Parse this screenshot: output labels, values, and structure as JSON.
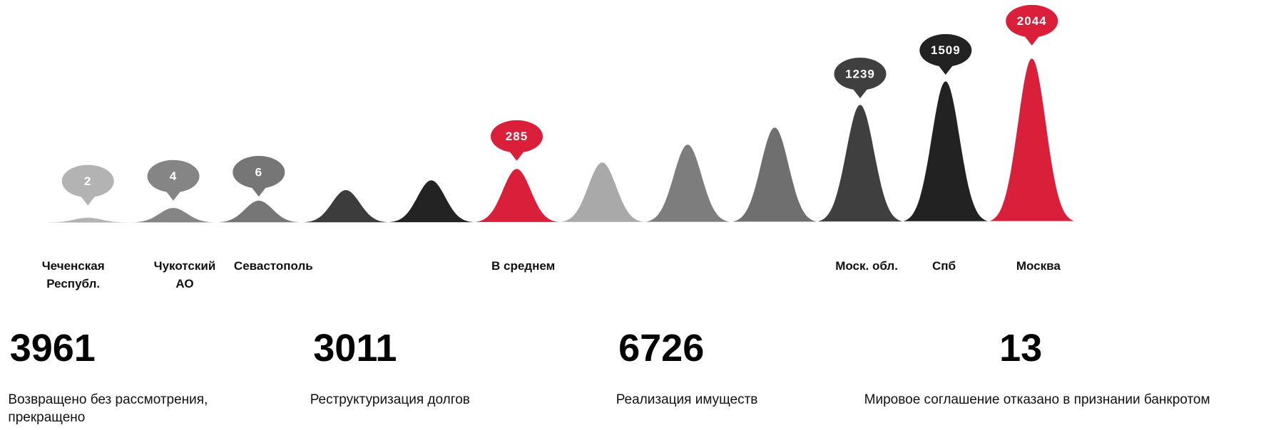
{
  "peaks": [
    {
      "name": "Чеченская Республ.",
      "value": 2,
      "color": "#b3b3b3"
    },
    {
      "name": "Чукотский АО",
      "value": 4,
      "color": "#858585"
    },
    {
      "name": "Севастополь",
      "value": 6,
      "color": "#767676"
    },
    {
      "name": null,
      "value": null,
      "color": "#3c3c3c"
    },
    {
      "name": null,
      "value": null,
      "color": "#232323"
    },
    {
      "name": "В среднем",
      "value": 285,
      "color": "#d91f3a"
    },
    {
      "name": null,
      "value": null,
      "color": "#a9a9a9"
    },
    {
      "name": null,
      "value": null,
      "color": "#7d7d7d"
    },
    {
      "name": null,
      "value": null,
      "color": "#6f6f6f"
    },
    {
      "name": "Моск. обл.",
      "value": 1239,
      "color": "#3f3f3f"
    },
    {
      "name": "Спб",
      "value": 1509,
      "color": "#222222"
    },
    {
      "name": "Москва",
      "value": 2044,
      "color": "#d91f3a"
    }
  ],
  "stats": [
    {
      "value": 3961,
      "label": "Возвращено без рассмотрения, прекращено"
    },
    {
      "value": 3011,
      "label": "Реструктуризация долгов"
    },
    {
      "value": 6726,
      "label": "Реализация имуществ"
    },
    {
      "value": 13,
      "label": "Мировое соглашение отказано  в признании банкротом"
    }
  ]
}
